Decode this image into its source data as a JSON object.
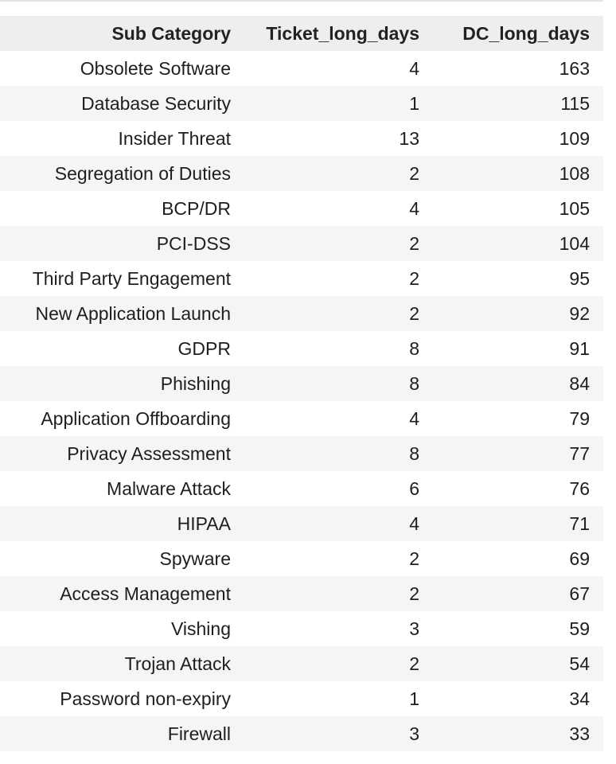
{
  "table": {
    "columns": [
      "Sub Category",
      "Ticket_long_days",
      "DC_long_days"
    ],
    "rows": [
      [
        "Obsolete Software",
        "4",
        "163"
      ],
      [
        "Database Security",
        "1",
        "115"
      ],
      [
        "Insider Threat",
        "13",
        "109"
      ],
      [
        "Segregation of Duties",
        "2",
        "108"
      ],
      [
        "BCP/DR",
        "4",
        "105"
      ],
      [
        "PCI-DSS",
        "2",
        "104"
      ],
      [
        "Third Party Engagement",
        "2",
        "95"
      ],
      [
        "New Application Launch",
        "2",
        "92"
      ],
      [
        "GDPR",
        "8",
        "91"
      ],
      [
        "Phishing",
        "8",
        "84"
      ],
      [
        "Application Offboarding",
        "4",
        "79"
      ],
      [
        "Privacy Assessment",
        "8",
        "77"
      ],
      [
        "Malware Attack",
        "6",
        "76"
      ],
      [
        "HIPAA",
        "4",
        "71"
      ],
      [
        "Spyware",
        "2",
        "69"
      ],
      [
        "Access Management",
        "2",
        "67"
      ],
      [
        "Vishing",
        "3",
        "59"
      ],
      [
        "Trojan Attack",
        "2",
        "54"
      ],
      [
        "Password non-expiry",
        "1",
        "34"
      ],
      [
        "Firewall",
        "3",
        "33"
      ]
    ]
  }
}
